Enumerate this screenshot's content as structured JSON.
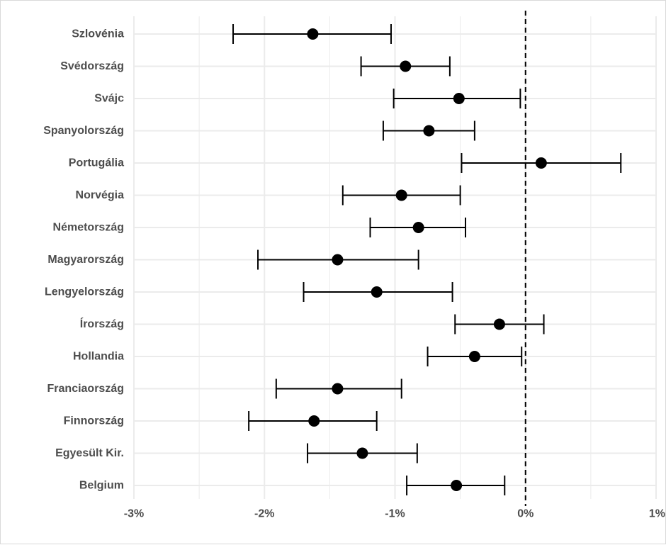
{
  "chart_data": {
    "type": "dot-errorbar",
    "orientation": "horizontal",
    "title": "",
    "xlabel": "",
    "ylabel": "",
    "x_unit": "%",
    "xlim": [
      -3.0,
      1.0
    ],
    "x_ticks": [
      -3,
      -2,
      -1,
      0,
      1
    ],
    "x_tick_labels": [
      "-3%",
      "-2%",
      "-1%",
      "0%",
      "1%"
    ],
    "reference_line": {
      "x": 0,
      "style": "dashed",
      "color": "#000000"
    },
    "grid": true,
    "legend": "none",
    "categories": [
      "Szlovénia",
      "Svédország",
      "Svájc",
      "Spanyolország",
      "Portugália",
      "Norvégia",
      "Németország",
      "Magyarország",
      "Lengyelország",
      "Írország",
      "Hollandia",
      "Franciaország",
      "Finnország",
      "Egyesült Kir.",
      "Belgium"
    ],
    "estimates": [
      -1.63,
      -0.92,
      -0.51,
      -0.74,
      0.12,
      -0.95,
      -0.82,
      -1.44,
      -1.14,
      -0.2,
      -0.39,
      -1.44,
      -1.62,
      -1.25,
      -0.53
    ],
    "lower": [
      -2.24,
      -1.26,
      -1.01,
      -1.09,
      -0.49,
      -1.4,
      -1.19,
      -2.05,
      -1.7,
      -0.54,
      -0.75,
      -1.91,
      -2.12,
      -1.67,
      -0.91
    ],
    "upper": [
      -1.03,
      -0.58,
      -0.04,
      -0.39,
      0.73,
      -0.5,
      -0.46,
      -0.82,
      -0.56,
      0.14,
      -0.03,
      -0.95,
      -1.14,
      -0.83,
      -0.16
    ],
    "colors": {
      "point": "#000000",
      "errorbar": "#000000",
      "grid": "#ebebeb",
      "label": "#4d4d4d"
    }
  }
}
